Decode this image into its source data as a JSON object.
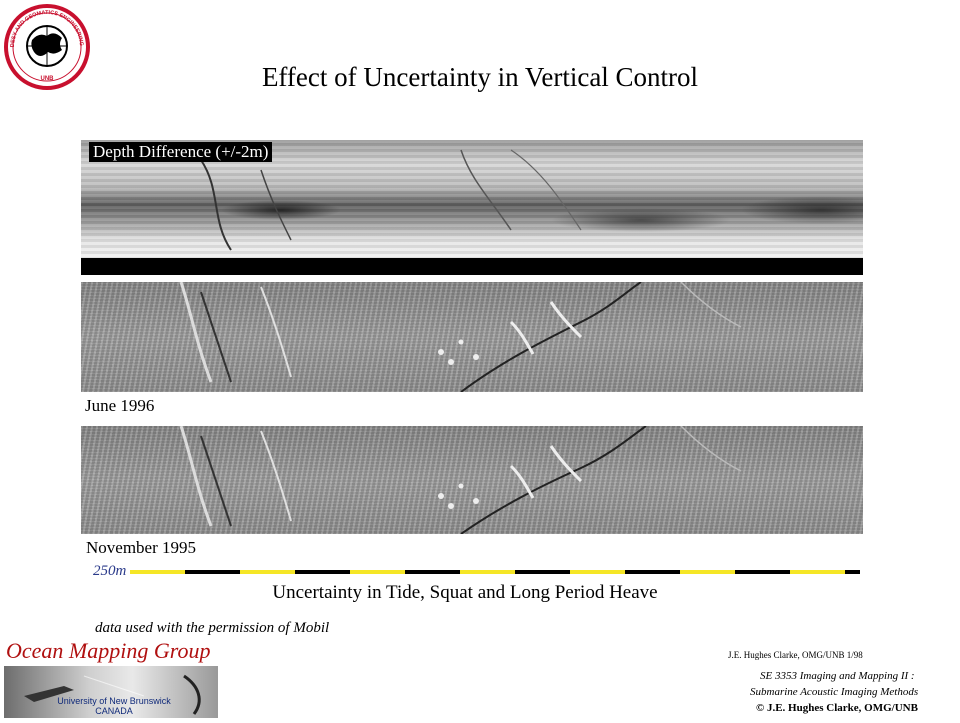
{
  "logo": {
    "icon": "unb-geodesy-seal-icon",
    "text": "GEODESY AND GEOMATICS ENGINEERING UNB"
  },
  "title": "Effect of Uncertainty in Vertical Control",
  "panels": {
    "difference_label": "Depth Difference (+/-2m)",
    "june_label": "June 1996",
    "november_label": "November 1995"
  },
  "scale": {
    "label": "250m",
    "colors": [
      "#f5e626",
      "#000000"
    ]
  },
  "caption": "Uncertainty in Tide, Squat and Long Period Heave",
  "credit": "data used with the permission of Mobil",
  "omg": {
    "title": "Ocean Mapping Group",
    "uni_line1": "University of New Brunswick",
    "uni_line2": "CANADA"
  },
  "footer": {
    "author": "J.E. Hughes Clarke, OMG/UNB 1/98",
    "course_line1": "SE 3353 Imaging and Mapping II :",
    "course_line2": "Submarine Acoustic Imaging Methods",
    "copyright": "© J.E. Hughes Clarke, OMG/UNB"
  }
}
